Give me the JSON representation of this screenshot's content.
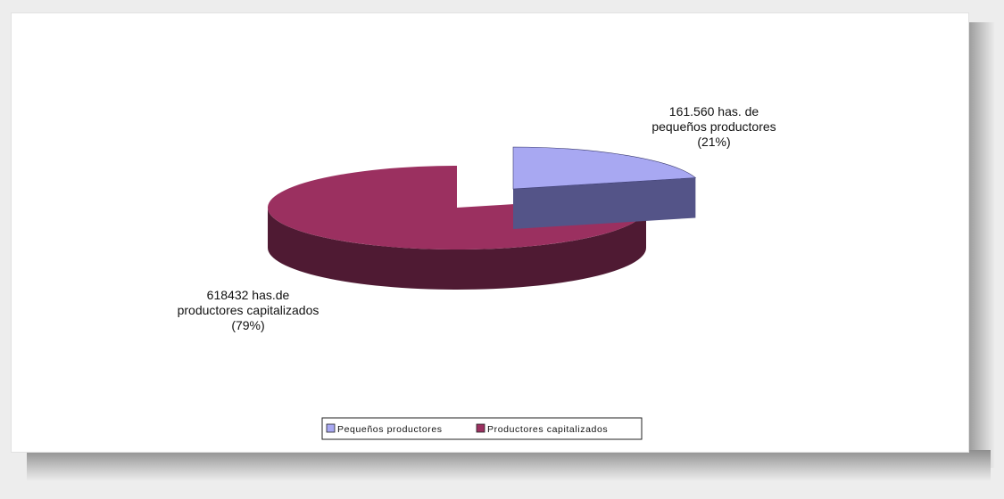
{
  "chart_data": {
    "type": "pie",
    "style": "3d-exploded",
    "legend_position": "bottom",
    "categories": [
      "Pequeños productores",
      "Productores capitalizados"
    ],
    "values": [
      161560,
      618432
    ],
    "percentages": [
      21,
      79
    ],
    "colors": {
      "small_top": "#a8a8f2",
      "small_side": "#545488",
      "large_top": "#9b3060",
      "large_side": "#4f1a33"
    },
    "labels": {
      "small": [
        "161.560 has. de",
        "pequeños productores",
        "(21%)"
      ],
      "large": [
        "618432 has.de",
        "productores capitalizados",
        "(79%)"
      ]
    },
    "legend": [
      "Pequeños productores",
      "Productores capitalizados"
    ]
  }
}
